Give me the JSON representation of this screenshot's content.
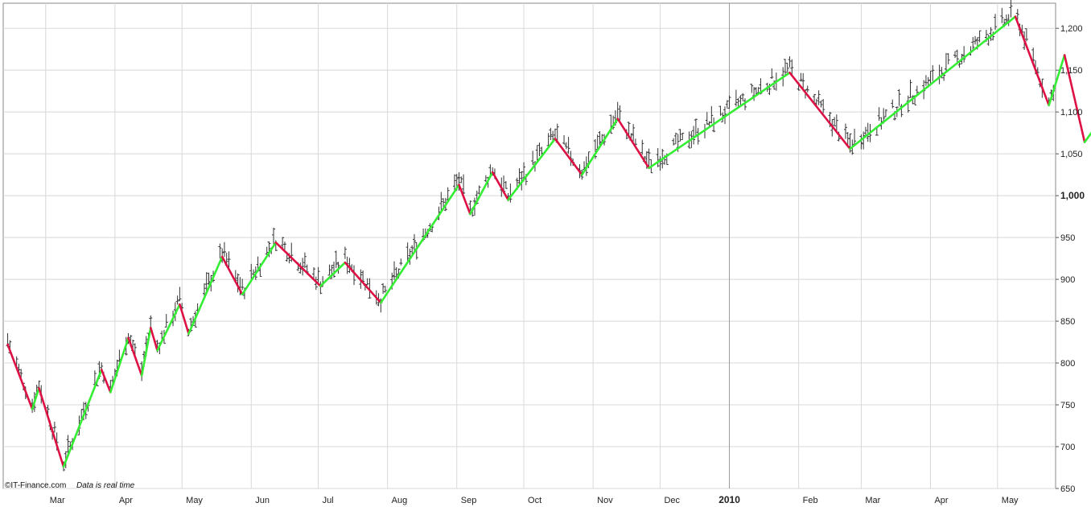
{
  "credit": {
    "source": "©IT-Finance.com",
    "note": "Data is real time"
  },
  "colors": {
    "up_swing": "#33ee33",
    "down_swing": "#dd1144",
    "bars": "#333333",
    "grid": "#d8d8d8",
    "year_line": "#999999"
  },
  "chart_data": {
    "type": "line",
    "title": "",
    "xlabel": "",
    "ylabel": "",
    "ylim": [
      650,
      1230
    ],
    "y_ticks": [
      650,
      700,
      750,
      800,
      850,
      900,
      950,
      1000,
      1050,
      1100,
      1150,
      1200
    ],
    "y_tick_labels": [
      "650",
      "700",
      "750",
      "800",
      "850",
      "900",
      "950",
      "1,000",
      "1,050",
      "1,100",
      "1,150",
      "1,200"
    ],
    "y_tick_bold": "1,000",
    "y_axis_side": "right",
    "grid": true,
    "x_ticks": [
      {
        "label": "Mar",
        "date": "2009-03-01"
      },
      {
        "label": "Apr",
        "date": "2009-04-01"
      },
      {
        "label": "May",
        "date": "2009-05-01"
      },
      {
        "label": "Jun",
        "date": "2009-06-01"
      },
      {
        "label": "Jul",
        "date": "2009-07-01"
      },
      {
        "label": "Aug",
        "date": "2009-08-01"
      },
      {
        "label": "Sep",
        "date": "2009-09-01"
      },
      {
        "label": "Oct",
        "date": "2009-10-01"
      },
      {
        "label": "Nov",
        "date": "2009-11-01"
      },
      {
        "label": "Dec",
        "date": "2009-12-01"
      },
      {
        "label": "2010",
        "date": "2010-01-01",
        "bold": true
      },
      {
        "label": "Feb",
        "date": "2010-02-01"
      },
      {
        "label": "Mar",
        "date": "2010-03-01"
      },
      {
        "label": "Apr",
        "date": "2010-04-01"
      },
      {
        "label": "May",
        "date": "2010-05-01"
      }
    ],
    "x_range": [
      "2009-02-10",
      "2010-05-27"
    ],
    "series": [
      {
        "type": "zigzag",
        "points": [
          {
            "x": "2009-02-12",
            "y": 822
          },
          {
            "x": "2009-02-23",
            "y": 745
          },
          {
            "x": "2009-02-26",
            "y": 770
          },
          {
            "x": "2009-03-09",
            "y": 676
          },
          {
            "x": "2009-03-26",
            "y": 792
          },
          {
            "x": "2009-03-30",
            "y": 765
          },
          {
            "x": "2009-04-07",
            "y": 830
          },
          {
            "x": "2009-04-13",
            "y": 785
          },
          {
            "x": "2009-04-17",
            "y": 842
          },
          {
            "x": "2009-04-20",
            "y": 815
          },
          {
            "x": "2009-04-30",
            "y": 870
          },
          {
            "x": "2009-05-04",
            "y": 835
          },
          {
            "x": "2009-05-19",
            "y": 927
          },
          {
            "x": "2009-05-28",
            "y": 882
          },
          {
            "x": "2009-06-12",
            "y": 944
          },
          {
            "x": "2009-07-02",
            "y": 892
          },
          {
            "x": "2009-07-13",
            "y": 920
          },
          {
            "x": "2009-07-29",
            "y": 872
          },
          {
            "x": "2009-09-02",
            "y": 1013
          },
          {
            "x": "2009-09-07",
            "y": 978
          },
          {
            "x": "2009-09-17",
            "y": 1028
          },
          {
            "x": "2009-09-24",
            "y": 995
          },
          {
            "x": "2009-10-15",
            "y": 1068
          },
          {
            "x": "2009-10-27",
            "y": 1025
          },
          {
            "x": "2009-11-12",
            "y": 1092
          },
          {
            "x": "2009-11-26",
            "y": 1033
          },
          {
            "x": "2010-01-28",
            "y": 1147
          },
          {
            "x": "2010-02-24",
            "y": 1056
          },
          {
            "x": "2010-05-09",
            "y": 1214
          },
          {
            "x": "2010-05-24",
            "y": 1108
          },
          {
            "x": "2010-05-31",
            "y": 1168
          },
          {
            "x": "2010-06-09",
            "y": 1064
          },
          {
            "x": "2010-06-12",
            "y": 1075
          }
        ]
      }
    ]
  }
}
